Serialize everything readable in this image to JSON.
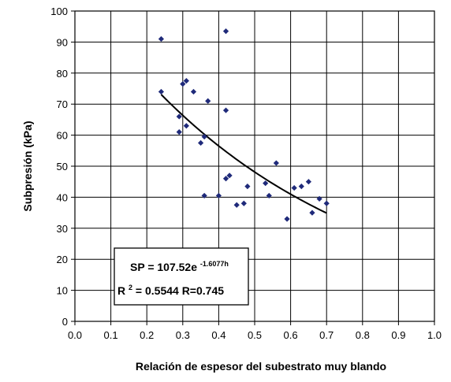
{
  "chart_data": {
    "type": "scatter",
    "xlabel": "Relación de espesor del subestrato muy blando",
    "ylabel": "Subpresión (kPa)",
    "xlim": [
      0.0,
      1.0
    ],
    "ylim": [
      0,
      100
    ],
    "x_ticks": [
      "0.0",
      "0.1",
      "0.2",
      "0.3",
      "0.4",
      "0.5",
      "0.6",
      "0.7",
      "0.8",
      "0.9",
      "1.0"
    ],
    "y_ticks": [
      "0",
      "10",
      "20",
      "30",
      "40",
      "50",
      "60",
      "70",
      "80",
      "90",
      "100"
    ],
    "grid": true,
    "marker_color": "#1f2a7a",
    "trend_color": "#000000",
    "series": [
      {
        "points": [
          [
            0.24,
            91
          ],
          [
            0.24,
            74
          ],
          [
            0.42,
            93.5
          ],
          [
            0.3,
            76.5
          ],
          [
            0.31,
            77.5
          ],
          [
            0.33,
            74
          ],
          [
            0.37,
            71
          ],
          [
            0.42,
            68
          ],
          [
            0.29,
            66
          ],
          [
            0.29,
            61
          ],
          [
            0.31,
            63
          ],
          [
            0.35,
            57.5
          ],
          [
            0.36,
            59.5
          ],
          [
            0.36,
            40.5
          ],
          [
            0.4,
            40.5
          ],
          [
            0.42,
            46
          ],
          [
            0.43,
            47
          ],
          [
            0.45,
            37.5
          ],
          [
            0.47,
            38
          ],
          [
            0.48,
            43.5
          ],
          [
            0.53,
            44.5
          ],
          [
            0.54,
            40.5
          ],
          [
            0.56,
            51
          ],
          [
            0.59,
            33
          ],
          [
            0.61,
            43
          ],
          [
            0.63,
            43.5
          ],
          [
            0.65,
            45
          ],
          [
            0.66,
            35
          ],
          [
            0.68,
            39.5
          ],
          [
            0.7,
            38
          ]
        ]
      }
    ],
    "trendline": {
      "type": "exponential",
      "a": 107.52,
      "b": -1.6077,
      "x_range": [
        0.24,
        0.7
      ]
    },
    "annotation": {
      "line1_main": "SP = 107.52e",
      "line1_exp": "-1.6077h",
      "line2_r": "R",
      "line2_sup": "2",
      "line2_rest": " = 0.5544 R=0.745"
    }
  }
}
